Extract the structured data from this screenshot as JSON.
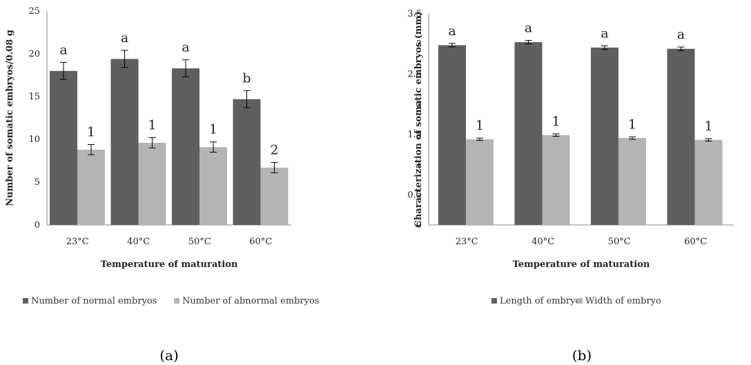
{
  "chart_data": [
    {
      "type": "bar",
      "panel_label": "(a)",
      "categories": [
        "23°C",
        "40°C",
        "50°C",
        "60°C"
      ],
      "xlabel": "Temperature of maturation",
      "ylabel": "Number of somatic embryos/0.08 g",
      "ylim": [
        0,
        25
      ],
      "yticks": [
        0,
        5,
        10,
        15,
        20,
        25
      ],
      "grid": false,
      "legend_position": "bottom",
      "series": [
        {
          "name": "Number of normal embryos",
          "color": "#5f5f5f",
          "values": [
            18.0,
            19.4,
            18.3,
            14.7
          ],
          "errors": [
            1.0,
            1.0,
            1.0,
            1.0
          ],
          "labels": [
            "a",
            "a",
            "a",
            "b"
          ]
        },
        {
          "name": "Number of abnormal embryos",
          "color": "#b4b4b4",
          "values": [
            8.8,
            9.6,
            9.1,
            6.7
          ],
          "errors": [
            0.6,
            0.6,
            0.6,
            0.6
          ],
          "labels": [
            "1",
            "1",
            "1",
            "2"
          ]
        }
      ]
    },
    {
      "type": "bar",
      "panel_label": "(b)",
      "categories": [
        "23°C",
        "40°C",
        "50°C",
        "60°C"
      ],
      "xlabel": "Temperature of maturation",
      "ylabel": "Characterization of somatic embryos (mm)",
      "ylim": [
        0,
        3.5
      ],
      "yticks": [
        0,
        0.5,
        1,
        1.5,
        2,
        2.5,
        3,
        3.5
      ],
      "grid": false,
      "legend_position": "bottom",
      "series": [
        {
          "name": "Length of embryo",
          "color": "#5f5f5f",
          "values": [
            2.98,
            3.03,
            2.94,
            2.92
          ],
          "errors": [
            0.03,
            0.03,
            0.03,
            0.03
          ],
          "labels": [
            "a",
            "a",
            "a",
            "a"
          ]
        },
        {
          "name": "Width of embryo",
          "color": "#b4b4b4",
          "values": [
            1.42,
            1.49,
            1.44,
            1.41
          ],
          "errors": [
            0.02,
            0.02,
            0.02,
            0.02
          ],
          "labels": [
            "1",
            "1",
            "1",
            "1"
          ]
        }
      ]
    }
  ]
}
